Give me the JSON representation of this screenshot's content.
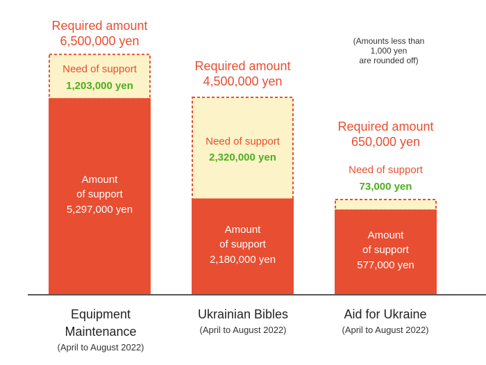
{
  "note": [
    "(Amounts less than",
    "1,000 yen",
    "are rounded off)"
  ],
  "colors": {
    "support": "#e84e31",
    "need": "#fdf3c8",
    "need_border": "#e84e31",
    "required_text": "#e84e31",
    "need_value_text": "#4caf1f",
    "baseline": "#555555"
  },
  "chart_data": {
    "type": "bar",
    "stacked": true,
    "categories": [
      {
        "name": [
          "Equipment",
          "Maintenance"
        ],
        "period": "(April to August 2022)"
      },
      {
        "name": [
          "Ukrainian Bibles"
        ],
        "period": "(April to August 2022)"
      },
      {
        "name": [
          "Aid for Ukraine"
        ],
        "period": "(April to August 2022)"
      }
    ],
    "series": [
      {
        "name": "Amount of support",
        "values": [
          5297000,
          2180000,
          577000
        ]
      },
      {
        "name": "Need of support",
        "values": [
          1203000,
          2320000,
          73000
        ]
      }
    ],
    "required": [
      6500000,
      4500000,
      650000
    ],
    "labels": {
      "required_title": "Required amount",
      "required_values": [
        "6,500,000 yen",
        "4,500,000 yen",
        "650,000 yen"
      ],
      "need_title": "Need of support",
      "need_values": [
        "1,203,000 yen",
        "2,320,000 yen",
        "73,000 yen"
      ],
      "support_title": [
        "Amount",
        "of support"
      ],
      "support_values": [
        "5,297,000 yen",
        "2,180,000 yen",
        "577,000 yen"
      ]
    }
  }
}
